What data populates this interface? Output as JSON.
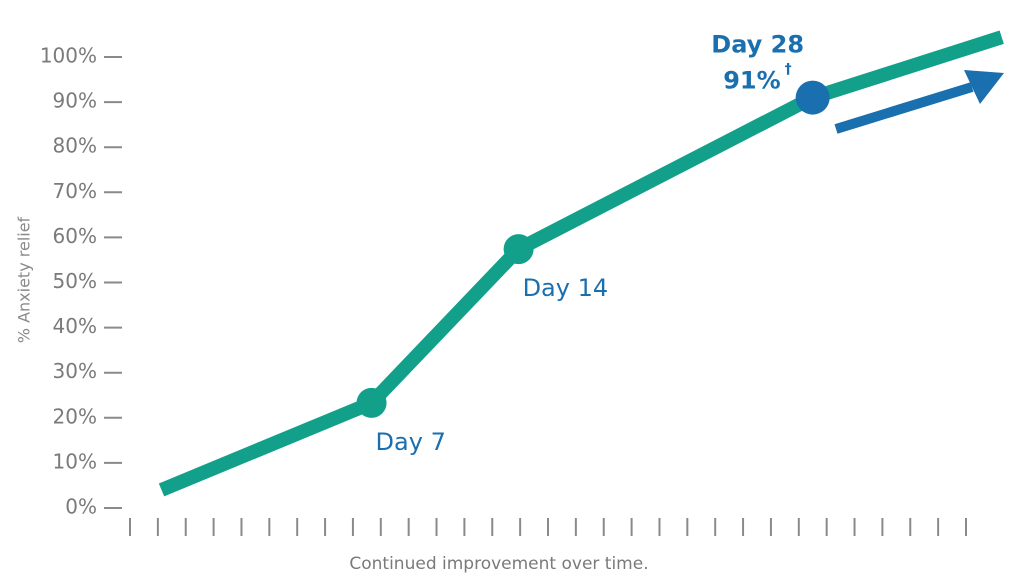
{
  "chart_data": {
    "type": "line",
    "y_label": "% Anxiety relief",
    "x_label": "Continued improvement over time.",
    "x": [
      -3,
      7,
      14,
      28,
      37
    ],
    "values": [
      4,
      23.3,
      57.4,
      91,
      104.4
    ],
    "value_labels": [
      null,
      null,
      null,
      "91%",
      null
    ],
    "footnote_mark": "†",
    "annotations": [
      null,
      "Day 7",
      "Day 14",
      "Day 28",
      null
    ],
    "markers": [
      false,
      true,
      true,
      true,
      false
    ],
    "color": "#12a08a",
    "highlight_color": "#1a6faf",
    "xlim": [
      -4.5,
      35.3
    ],
    "ylim": [
      0,
      100
    ],
    "yticks": [
      {
        "value": 0,
        "label": "0%"
      },
      {
        "value": 10,
        "label": "10%"
      },
      {
        "value": 20,
        "label": "20%"
      },
      {
        "value": 30,
        "label": "30%"
      },
      {
        "value": 40,
        "label": "40%"
      },
      {
        "value": 50,
        "label": "50%"
      },
      {
        "value": 60,
        "label": "60%"
      },
      {
        "value": 70,
        "label": "70%"
      },
      {
        "value": 80,
        "label": "80%"
      },
      {
        "value": 90,
        "label": "90%"
      },
      {
        "value": 100,
        "label": "100%"
      }
    ]
  }
}
